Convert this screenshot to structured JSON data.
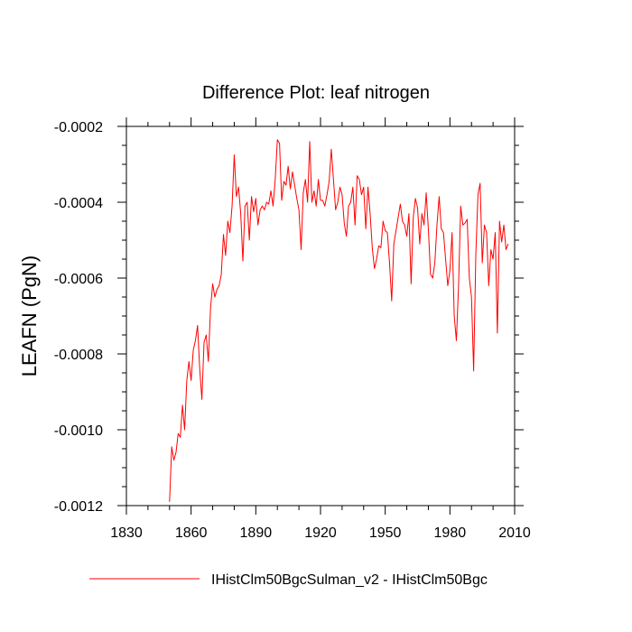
{
  "chart_data": {
    "type": "line",
    "title": "Difference Plot: leaf nitrogen",
    "ylabel": "LEAFN  (PgN)",
    "xlabel": "",
    "xlim": [
      1830,
      2010
    ],
    "ylim": [
      -0.0012,
      -0.0002
    ],
    "xticks": [
      1830,
      1860,
      1890,
      1920,
      1950,
      1980,
      2010
    ],
    "xtick_labels": [
      "1830",
      "1860",
      "1890",
      "1920",
      "1950",
      "1980",
      "2010"
    ],
    "yticks": [
      -0.0012,
      -0.001,
      -0.0008,
      -0.0006,
      -0.0004,
      -0.0002
    ],
    "ytick_labels": [
      "-0.0012",
      "-0.0010",
      "-0.0008",
      "-0.0006",
      "-0.0004",
      "-0.0002"
    ],
    "grid": false,
    "legend_position": "bottom-center",
    "series": [
      {
        "name": "IHistClm50BgcSulman_v2 - IHistClm50Bgc",
        "color": "#ff0000",
        "x_start": 1850,
        "x_step": 1,
        "values": [
          -0.00119,
          -0.001045,
          -0.00108,
          -0.00106,
          -0.00101,
          -0.00102,
          -0.000935,
          -0.001,
          -0.00087,
          -0.00082,
          -0.00087,
          -0.00079,
          -0.000765,
          -0.000725,
          -0.00084,
          -0.00092,
          -0.00077,
          -0.00075,
          -0.00082,
          -0.00068,
          -0.000615,
          -0.00065,
          -0.00063,
          -0.00062,
          -0.00059,
          -0.000485,
          -0.00054,
          -0.00045,
          -0.00048,
          -0.00041,
          -0.000275,
          -0.000385,
          -0.00036,
          -0.00043,
          -0.000555,
          -0.00041,
          -0.0004,
          -0.0005,
          -0.000385,
          -0.000425,
          -0.00039,
          -0.00046,
          -0.00042,
          -0.00041,
          -0.00042,
          -0.0004,
          -0.000405,
          -0.00037,
          -0.00041,
          -0.00034,
          -0.000235,
          -0.000245,
          -0.000395,
          -0.000345,
          -0.000355,
          -0.000305,
          -0.000365,
          -0.00032,
          -0.000355,
          -0.00039,
          -0.00042,
          -0.000525,
          -0.000375,
          -0.00034,
          -0.0004,
          -0.00024,
          -0.0004,
          -0.00037,
          -0.00041,
          -0.00034,
          -0.000395,
          -0.000395,
          -0.00041,
          -0.00038,
          -0.000345,
          -0.00026,
          -0.00034,
          -0.00042,
          -0.0004,
          -0.00036,
          -0.00038,
          -0.000455,
          -0.00049,
          -0.00041,
          -0.0004,
          -0.00036,
          -0.00046,
          -0.00033,
          -0.00034,
          -0.00038,
          -0.00036,
          -0.00047,
          -0.00036,
          -0.00043,
          -0.00052,
          -0.000575,
          -0.00055,
          -0.000515,
          -0.00052,
          -0.00045,
          -0.000475,
          -0.00048,
          -0.00056,
          -0.00066,
          -0.00051,
          -0.000475,
          -0.00044,
          -0.000405,
          -0.00045,
          -0.00046,
          -0.00049,
          -0.00043,
          -0.000615,
          -0.00044,
          -0.00039,
          -0.000415,
          -0.00051,
          -0.00043,
          -0.00046,
          -0.000375,
          -0.00047,
          -0.00059,
          -0.0006,
          -0.00056,
          -0.00046,
          -0.000385,
          -0.00047,
          -0.00048,
          -0.00055,
          -0.00062,
          -0.00058,
          -0.00048,
          -0.0007,
          -0.000765,
          -0.00062,
          -0.00041,
          -0.00046,
          -0.000455,
          -0.000445,
          -0.0006,
          -0.00065,
          -0.000845,
          -0.00054,
          -0.00038,
          -0.00035,
          -0.00056,
          -0.00046,
          -0.00048,
          -0.00062,
          -0.000525,
          -0.00055,
          -0.00048,
          -0.000745,
          -0.00045,
          -0.000505,
          -0.00046,
          -0.000525,
          -0.00051
        ]
      }
    ]
  }
}
